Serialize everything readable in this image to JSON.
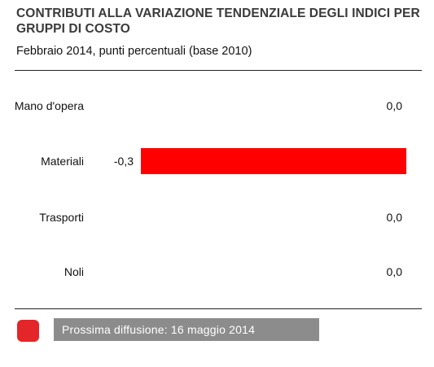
{
  "header": {
    "title": "CONTRIBUTI ALLA VARIAZIONE TENDENZIALE DEGLI INDICI PER GRUPPI DI COSTO",
    "subtitle": "Febbraio  2014, punti percentuali (base 2010)"
  },
  "chart_data": {
    "type": "bar",
    "orientation": "horizontal",
    "categories": [
      "Mano d'opera",
      "Materiali",
      "Trasporti",
      "Noli"
    ],
    "values": [
      0.0,
      -0.3,
      0.0,
      0.0
    ],
    "value_labels": [
      "0,0",
      "-0,3",
      "0,0",
      "0,0"
    ],
    "bar_color": "#ff0000",
    "xlim": [
      -0.3,
      0
    ]
  },
  "footer": {
    "swatch_color": "#e3262a",
    "label": "Prossima diffusione: 16 maggio 2014"
  }
}
